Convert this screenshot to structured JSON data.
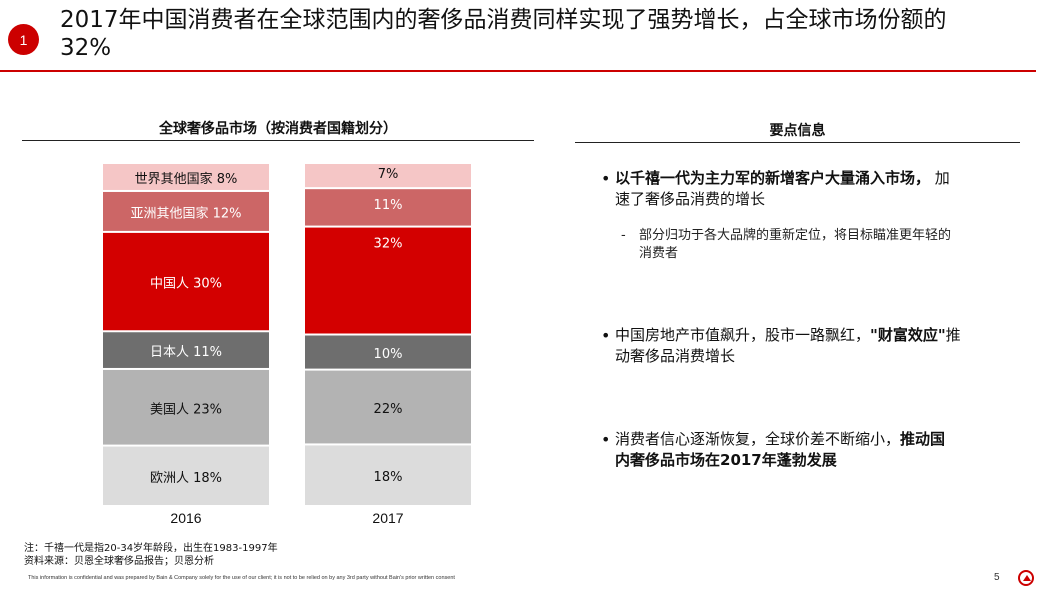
{
  "header": {
    "badge": "1",
    "title_line1": "2017年中国消费者在全球范围内的奢侈品消费同样实现了强势增长，占全球市场份额的",
    "title_line2": "32%"
  },
  "left_section": {
    "title": "全球奢侈品市场（按消费者国籍划分）"
  },
  "right_section": {
    "title": "要点信息"
  },
  "chart_data": {
    "type": "bar",
    "stacked": true,
    "normalized": true,
    "categories": [
      "2016",
      "2017"
    ],
    "series": [
      {
        "name": "欧洲人",
        "values": [
          18,
          18
        ],
        "color": "#dcdcdc"
      },
      {
        "name": "美国人",
        "values": [
          23,
          22
        ],
        "color": "#b3b3b3"
      },
      {
        "name": "日本人",
        "values": [
          11,
          10
        ],
        "color": "#6e6e6e"
      },
      {
        "name": "中国人",
        "values": [
          30,
          32
        ],
        "color": "#d30000"
      },
      {
        "name": "亚洲其他国家",
        "values": [
          12,
          11
        ],
        "color": "#cc6666"
      },
      {
        "name": "世界其他国家",
        "values": [
          8,
          7
        ],
        "color": "#f5c6c6"
      }
    ],
    "labels_2016": [
      "欧洲人 18%",
      "美国人 23%",
      "日本人 11%",
      "中国人 30%",
      "亚洲其他国家 12%",
      "世界其他国家 8%"
    ],
    "labels_2017": [
      "18%",
      "22%",
      "10%",
      "32%",
      "11%",
      "7%"
    ]
  },
  "bullets": [
    {
      "bold": "以千禧一代为主力军的新增客户大量涌入市场，",
      "line1_rest": " 加",
      "line2": "速了奢侈品消费的增长"
    },
    {
      "line1_pre": "中国房地产市值飙升，股市一路飘红，",
      "line1_bold": "\"财富效应\"",
      "line1_post": "推",
      "line2": "动奢侈品消费增长"
    },
    {
      "line1_pre": "消费者信心逐渐恢复，全球价差不断缩小，",
      "line1_bold": "推动国",
      "line2_bold": "内奢侈品市场在2017年蓬勃发展"
    }
  ],
  "sub_bullet": {
    "dash": "-",
    "line1": "部分归功于各大品牌的重新定位，将目标瞄准更年轻的",
    "line2": "消费者"
  },
  "notes": {
    "line1": "注：千禧一代是指20-34岁年龄段，出生在1983-1997年",
    "line2": "资料来源：贝恩全球奢侈品报告；贝恩分析"
  },
  "footer": {
    "confidential": "This information is confidential and was prepared by Bain & Company solely for the use of our client; it is not to be relied on by any 3rd party without Bain's prior written consent",
    "page_number": "5"
  }
}
